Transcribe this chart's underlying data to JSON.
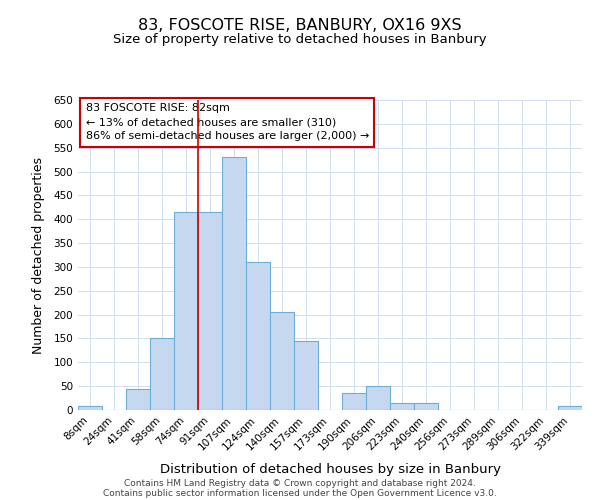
{
  "title1": "83, FOSCOTE RISE, BANBURY, OX16 9XS",
  "title2": "Size of property relative to detached houses in Banbury",
  "xlabel": "Distribution of detached houses by size in Banbury",
  "ylabel": "Number of detached properties",
  "footer1": "Contains HM Land Registry data © Crown copyright and database right 2024.",
  "footer2": "Contains public sector information licensed under the Open Government Licence v3.0.",
  "bin_labels": [
    "8sqm",
    "24sqm",
    "41sqm",
    "58sqm",
    "74sqm",
    "91sqm",
    "107sqm",
    "124sqm",
    "140sqm",
    "157sqm",
    "173sqm",
    "190sqm",
    "206sqm",
    "223sqm",
    "240sqm",
    "256sqm",
    "273sqm",
    "289sqm",
    "306sqm",
    "322sqm",
    "339sqm"
  ],
  "bar_values": [
    8,
    0,
    45,
    150,
    415,
    415,
    530,
    310,
    205,
    145,
    0,
    35,
    50,
    15,
    15,
    0,
    0,
    0,
    0,
    0,
    8
  ],
  "bar_color": "#c5d8f0",
  "bar_edge_color": "#6baed6",
  "bar_edge_width": 0.8,
  "vline_color": "#cc0000",
  "annotation_title": "83 FOSCOTE RISE: 82sqm",
  "annotation_line1": "← 13% of detached houses are smaller (310)",
  "annotation_line2": "86% of semi-detached houses are larger (2,000) →",
  "annotation_box_color": "#cc0000",
  "ylim": [
    0,
    650
  ],
  "yticks": [
    0,
    50,
    100,
    150,
    200,
    250,
    300,
    350,
    400,
    450,
    500,
    550,
    600,
    650
  ],
  "bg_color": "#ffffff",
  "grid_color": "#d0dded"
}
